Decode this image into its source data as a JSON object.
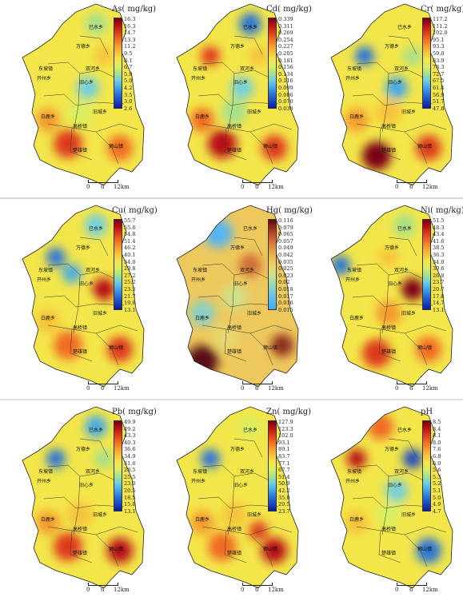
{
  "panels": [
    {
      "title": "As( mg/kg)",
      "ticks": [
        "16.3",
        "16.3",
        "14.7",
        "13.3",
        "11.2",
        "9.5",
        "8.1",
        "6.7",
        "5.9",
        "5.0",
        "4.2",
        "3.5",
        "3.0",
        "2.6"
      ],
      "colors": [
        "#7a0014",
        "#b80f14",
        "#dd3a1a",
        "#f06a22",
        "#f49a2e",
        "#f6c23a",
        "#f3e64a",
        "#d8ee62",
        "#a6e08a",
        "#70cfe0",
        "#44a8e8",
        "#2a74d8",
        "#1b46c2",
        "#0b1c9e"
      ],
      "places": {
        "p0": "已水乡",
        "p1": "万德乡",
        "p2": "东坡镇",
        "p3": "双河乡",
        "p4": "开州乡",
        "p5": "旧心乡",
        "p6": "白鹿乡",
        "p7": "旧城乡",
        "p8": "高桥镇",
        "p9": "楚雄镇",
        "p10": "狮山镇"
      }
    },
    {
      "title": "Cd( mg/kg)",
      "ticks": [
        "0.339",
        "0.311",
        "0.269",
        "0.254",
        "0.227",
        "0.205",
        "0.181",
        "0.156",
        "0.134",
        "0.116",
        "0.099",
        "0.086",
        "0.070",
        "0.038"
      ],
      "colors": [
        "#7a0014",
        "#b80f14",
        "#dd3a1a",
        "#f06a22",
        "#f49a2e",
        "#f6c23a",
        "#f3e64a",
        "#d8ee62",
        "#a6e08a",
        "#70cfe0",
        "#44a8e8",
        "#2a74d8",
        "#1b46c2",
        "#0b1c9e"
      ],
      "places": {
        "p0": "已水乡",
        "p1": "万德乡",
        "p2": "东坡镇",
        "p3": "双河乡",
        "p4": "开州乡",
        "p5": "旧心乡",
        "p6": "白鹿乡",
        "p7": "旧城乡",
        "p8": "高桥镇",
        "p9": "楚雄镇",
        "p10": "狮山镇"
      }
    },
    {
      "title": "Cr( mg/kg)",
      "ticks": [
        "117.2",
        "111.2",
        "102.0",
        "95.1",
        "93.3",
        "59.0",
        "83.9",
        "78.3",
        "72.7",
        "67.5",
        "61.4",
        "56.9",
        "51.7",
        "47.8"
      ],
      "colors": [
        "#7a0014",
        "#b80f14",
        "#dd3a1a",
        "#f06a22",
        "#f49a2e",
        "#f6c23a",
        "#f3e64a",
        "#d8ee62",
        "#a6e08a",
        "#70cfe0",
        "#44a8e8",
        "#2a74d8",
        "#1b46c2",
        "#0b1c9e"
      ],
      "places": {
        "p0": "已水乡",
        "p1": "万德乡",
        "p2": "东坡镇",
        "p3": "双河乡",
        "p4": "开州乡",
        "p5": "旧心乡",
        "p6": "白鹿乡",
        "p7": "旧城乡",
        "p8": "高桥镇",
        "p9": "楚雄镇",
        "p10": "狮山镇"
      }
    },
    {
      "title": "Cu( mg/kg)",
      "ticks": [
        "55.7",
        "55.6",
        "54.8",
        "51.4",
        "46.2",
        "40.1",
        "34.0",
        "29.8",
        "27.2",
        "25.2",
        "23.3",
        "21.7",
        "19.8",
        "13.1"
      ],
      "colors": [
        "#7a0014",
        "#b80f14",
        "#dd3a1a",
        "#f06a22",
        "#f49a2e",
        "#f6c23a",
        "#f3e64a",
        "#d8ee62",
        "#a6e08a",
        "#70cfe0",
        "#44a8e8",
        "#2a74d8",
        "#1b46c2",
        "#0b1c9e"
      ],
      "places": {
        "p0": "已水乡",
        "p1": "万德乡",
        "p2": "东坡镇",
        "p3": "双河乡",
        "p4": "开州乡",
        "p5": "旧心乡",
        "p6": "白鹿乡",
        "p7": "旧城乡",
        "p8": "高桥镇",
        "p9": "楚雄镇",
        "p10": "狮山镇"
      }
    },
    {
      "title": "Hg( mg/kg)",
      "ticks": [
        "0.116",
        "0.079",
        "0.065",
        "0.057",
        "0.049",
        "0.042",
        "0.035",
        "0.025",
        "0.023",
        "0.02",
        "0.018",
        "0.017",
        "0.016",
        "0.015"
      ],
      "colors": [
        "#5a0a14",
        "#8c2a1a",
        "#b4482a",
        "#cf6a35",
        "#e08d40",
        "#e9ad4d",
        "#edc85c",
        "#e6d86f",
        "#cfe08a",
        "#a9dca6",
        "#86d0c6",
        "#6cc3df",
        "#57b5ee",
        "#45a6f2"
      ],
      "places": {
        "p0": "已水乡",
        "p1": "万德乡",
        "p2": "东坡镇",
        "p3": "双河乡",
        "p4": "开州乡",
        "p5": "旧心乡",
        "p6": "白鹿乡",
        "p7": "旧城乡",
        "p8": "高桥镇",
        "p9": "楚雄镇",
        "p10": "狮山镇"
      }
    },
    {
      "title": "Ni( mg/kg)",
      "ticks": [
        "51.5",
        "48.3",
        "43.4",
        "41.6",
        "38.5",
        "36.3",
        "34.0",
        "30.6",
        "26.8",
        "23.7",
        "20.7",
        "17.8",
        "14.7",
        "13.1"
      ],
      "colors": [
        "#7a0014",
        "#b80f14",
        "#dd3a1a",
        "#f06a22",
        "#f49a2e",
        "#f6c23a",
        "#f3e64a",
        "#d8ee62",
        "#a6e08a",
        "#70cfe0",
        "#44a8e8",
        "#2a74d8",
        "#1b46c2",
        "#0b1c9e"
      ],
      "places": {
        "p0": "已水乡",
        "p1": "万德乡",
        "p2": "东坡镇",
        "p3": "双河乡",
        "p4": "开州乡",
        "p5": "旧心乡",
        "p6": "白鹿乡",
        "p7": "旧城乡",
        "p8": "高桥镇",
        "p9": "楚雄镇",
        "p10": "狮山镇"
      }
    },
    {
      "title": "Pb( mg/kg)",
      "ticks": [
        "49.9",
        "49.2",
        "43.3",
        "40.3",
        "36.6",
        "34.9",
        "31.6",
        "28.5",
        "25.5",
        "23.0",
        "20.5",
        "18.5",
        "15.8",
        "13.1"
      ],
      "colors": [
        "#7a0014",
        "#b80f14",
        "#dd3a1a",
        "#f06a22",
        "#f49a2e",
        "#f6c23a",
        "#f3e64a",
        "#d8ee62",
        "#a6e08a",
        "#70cfe0",
        "#44a8e8",
        "#2a74d8",
        "#1b46c2",
        "#0b1c9e"
      ],
      "places": {
        "p0": "已水乡",
        "p1": "万德乡",
        "p2": "东坡镇",
        "p3": "双河乡",
        "p4": "开州乡",
        "p5": "旧心乡",
        "p6": "白鹿乡",
        "p7": "旧城乡",
        "p8": "高桥镇",
        "p9": "楚雄镇",
        "p10": "狮山镇"
      }
    },
    {
      "title": "Zn( mg/kg)",
      "ticks": [
        "127.9",
        "123.3",
        "102.0",
        "93.1",
        "89.1",
        "83.7",
        "77.1",
        "67.7",
        "51.4",
        "50.9",
        "42.2",
        "35.0",
        "29.5",
        "23.7"
      ],
      "colors": [
        "#7a0014",
        "#b80f14",
        "#dd3a1a",
        "#f06a22",
        "#f49a2e",
        "#f6c23a",
        "#f3e64a",
        "#d8ee62",
        "#a6e08a",
        "#70cfe0",
        "#44a8e8",
        "#2a74d8",
        "#1b46c2",
        "#0b1c9e"
      ],
      "places": {
        "p0": "已水乡",
        "p1": "万德乡",
        "p2": "东坡镇",
        "p3": "双河乡",
        "p4": "开州乡",
        "p5": "旧心乡",
        "p6": "白鹿乡",
        "p7": "旧城乡",
        "p8": "高桥镇",
        "p9": "楚雄镇",
        "p10": "狮山镇"
      }
    },
    {
      "title": "pH",
      "ticks": [
        "8.5",
        "8.4",
        "8.1",
        "8.0",
        "7.6",
        "6.8",
        "6.0",
        "5.6",
        "5.3",
        "5.2",
        "5.1",
        "5.0",
        "4.9",
        "4.7"
      ],
      "colors": [
        "#7a0014",
        "#b80f14",
        "#dd3a1a",
        "#f06a22",
        "#f49a2e",
        "#f6c23a",
        "#f3e64a",
        "#d8ee62",
        "#a6e08a",
        "#70cfe0",
        "#44a8e8",
        "#2a74d8",
        "#1b46c2",
        "#0b1c9e"
      ],
      "places": {
        "p0": "已水乡",
        "p1": "万德乡",
        "p2": "东坡镇",
        "p3": "双河乡",
        "p4": "开州乡",
        "p5": "旧心乡",
        "p6": "白鹿乡",
        "p7": "旧城乡",
        "p8": "高桥镇",
        "p9": "楚雄镇",
        "p10": "狮山镇"
      }
    }
  ],
  "scale": {
    "l0": "0",
    "l1": "6",
    "l2": "12km"
  }
}
